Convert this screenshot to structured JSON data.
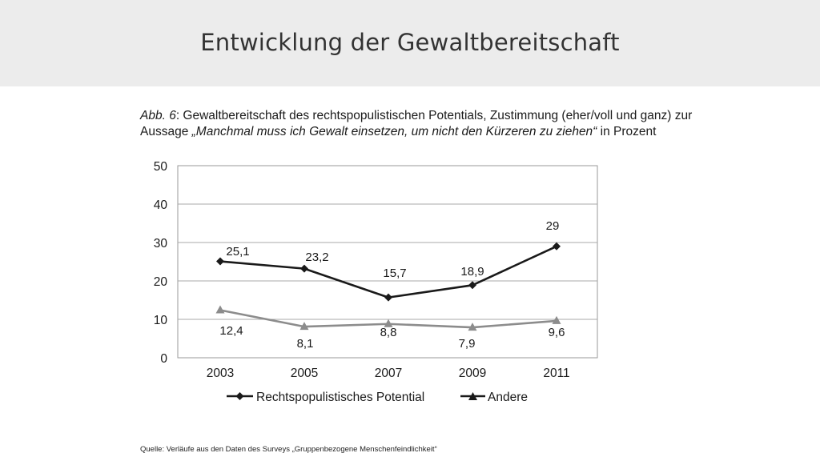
{
  "slide": {
    "title": "Entwicklung der Gewaltbereitschaft",
    "source": "Quelle: Verläufe aus den Daten des Surveys „Gruppenbezogene Menschenfeindlichkeit“"
  },
  "caption": {
    "figure_label": "Abb. 6",
    "part1": ": Gewaltbereitschaft des rechtspopulistischen Potentials, Zustimmung (eher/voll und ganz) zur Aussage ",
    "quote": "„Manchmal muss ich Gewalt einsetzen, um nicht den Kürzeren zu ziehen“",
    "part2": " in Prozent"
  },
  "chart_data": {
    "type": "line",
    "x": [
      "2003",
      "2005",
      "2007",
      "2009",
      "2011"
    ],
    "ylim": [
      0,
      50
    ],
    "yticks": [
      0,
      10,
      20,
      30,
      40,
      50
    ],
    "grid": true,
    "legend": "bottom",
    "series": [
      {
        "name": "Rechtspopulistisches Potential",
        "values": [
          25.1,
          23.2,
          15.7,
          18.9,
          29
        ],
        "labels": [
          "25,1",
          "23,2",
          "15,7",
          "18,9",
          "29"
        ],
        "marker": "diamond",
        "color": "#1a1a1a"
      },
      {
        "name": "Andere",
        "values": [
          12.4,
          8.1,
          8.8,
          7.9,
          9.6
        ],
        "labels": [
          "12,4",
          "8,1",
          "8,8",
          "7,9",
          "9,6"
        ],
        "marker": "triangle",
        "color": "#8c8c8c"
      }
    ]
  }
}
